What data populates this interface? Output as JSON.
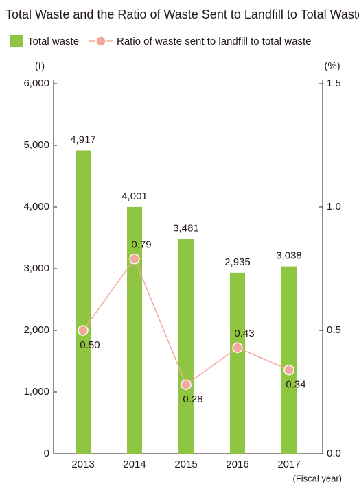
{
  "chart_data": {
    "type": "combo",
    "title": "Total Waste and the Ratio of Waste Sent to Landfill to Total Waste",
    "y_unit": "(t)",
    "y2_unit": "(%)",
    "x_label": "(Fiscal year)",
    "categories": [
      "2013",
      "2014",
      "2015",
      "2016",
      "2017"
    ],
    "series": [
      {
        "name": "Total waste",
        "type": "bar",
        "color": "#8fc641",
        "values": [
          4917,
          4001,
          3481,
          2935,
          3038
        ],
        "value_labels": [
          "4,917",
          "4,001",
          "3,481",
          "2,935",
          "3,038"
        ]
      },
      {
        "name": "Ratio of waste sent to landfill to total waste",
        "type": "line",
        "axis": "y2",
        "color": "#f3a89c",
        "values": [
          0.5,
          0.79,
          0.28,
          0.43,
          0.34
        ],
        "value_labels": [
          "0.50",
          "0.79",
          "0.28",
          "0.43",
          "0.34"
        ]
      }
    ],
    "ylim": [
      0,
      6000
    ],
    "yticks": [
      0,
      {
        "value": 1000,
        "label": "1,000"
      },
      {
        "value": 2000,
        "label": "2,000"
      },
      {
        "value": 3000,
        "label": "3,000"
      },
      {
        "value": 4000,
        "label": "4,000"
      },
      {
        "value": 5000,
        "label": "5,000"
      },
      {
        "value": 6000,
        "label": "6,000"
      }
    ],
    "y2lim": [
      0,
      1.5
    ],
    "y2ticks": [
      {
        "value": 0,
        "label": "0.0"
      },
      0.5,
      {
        "value": 1,
        "label": "1.0"
      },
      1.5
    ]
  }
}
